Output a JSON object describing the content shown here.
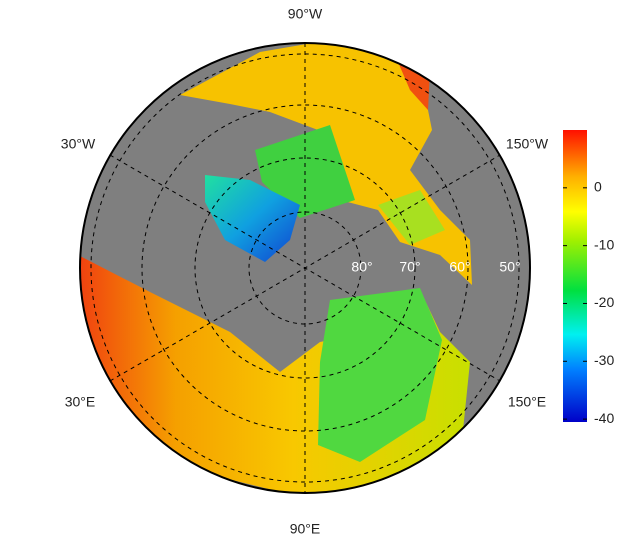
{
  "map": {
    "longitude_labels": [
      "90°W",
      "30°W",
      "150°W",
      "30°E",
      "150°E",
      "90°E"
    ],
    "latitude_labels": [
      "80°",
      "70°",
      "60°",
      "50°"
    ],
    "colorbar": {
      "lim": [
        -40.5,
        10
      ],
      "ticks": [
        0,
        -10,
        -20,
        -30,
        -40
      ]
    }
  }
}
